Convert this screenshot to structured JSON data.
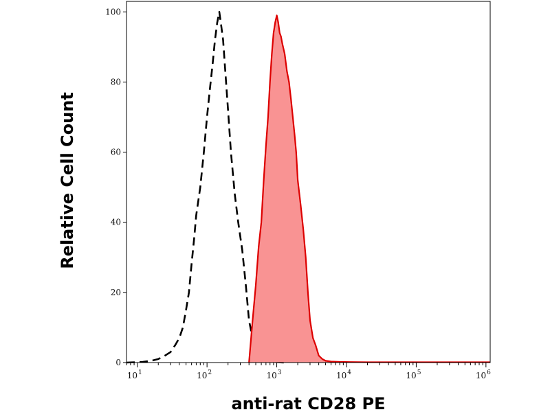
{
  "chart_data": {
    "type": "area",
    "xlabel": "anti-rat CD28 PE",
    "ylabel": "Relative Cell Count",
    "x_scale": "log",
    "xlim": [
      7,
      1150000
    ],
    "ylim": [
      0,
      103
    ],
    "x_ticks": [
      {
        "value": 10,
        "base": "10",
        "exp": "1"
      },
      {
        "value": 100,
        "base": "10",
        "exp": "2"
      },
      {
        "value": 1000,
        "base": "10",
        "exp": "3"
      },
      {
        "value": 10000,
        "base": "10",
        "exp": "4"
      },
      {
        "value": 100000,
        "base": "10",
        "exp": "5"
      },
      {
        "value": 1000000,
        "base": "10",
        "exp": "6"
      }
    ],
    "y_ticks": [
      {
        "value": 0,
        "label": "0"
      },
      {
        "value": 20,
        "label": "20"
      },
      {
        "value": 40,
        "label": "40"
      },
      {
        "value": 60,
        "label": "60"
      },
      {
        "value": 80,
        "label": "80"
      },
      {
        "value": 100,
        "label": "100"
      }
    ],
    "grid": false,
    "series": [
      {
        "style": "dashed",
        "color": "#000000",
        "fill": "none",
        "x": [
          7,
          12,
          16,
          20,
          25,
          30,
          35,
          40,
          45,
          50,
          55,
          60,
          65,
          70,
          80,
          90,
          100,
          110,
          120,
          130,
          140,
          150,
          160,
          170,
          180,
          200,
          220,
          250,
          280,
          320,
          360,
          400,
          450,
          500,
          560,
          630,
          700,
          800,
          1000,
          1300
        ],
        "values": [
          0,
          0.2,
          0.5,
          1,
          2,
          3,
          5,
          7,
          10,
          15,
          20,
          28,
          35,
          42,
          50,
          60,
          70,
          78,
          85,
          92,
          97,
          100,
          96,
          92,
          85,
          72,
          60,
          48,
          40,
          32,
          22,
          12,
          7,
          4,
          2,
          1,
          0.6,
          0.3,
          0.1,
          0
        ]
      },
      {
        "style": "solid",
        "color": "#dd0000",
        "fill": "#f99393",
        "x": [
          400,
          450,
          500,
          550,
          600,
          650,
          700,
          750,
          800,
          850,
          900,
          950,
          1000,
          1050,
          1100,
          1150,
          1200,
          1300,
          1400,
          1500,
          1600,
          1700,
          1800,
          1900,
          2000,
          2200,
          2400,
          2600,
          2800,
          3000,
          3300,
          3600,
          4000,
          4500,
          5000,
          6000,
          8000,
          20000,
          100000,
          1150000
        ],
        "values": [
          0,
          12,
          22,
          33,
          40,
          52,
          62,
          70,
          80,
          88,
          94,
          97,
          99,
          97,
          94,
          93,
          91,
          88,
          83,
          80,
          75,
          70,
          65,
          60,
          52,
          45,
          38,
          30,
          20,
          12,
          7,
          5,
          2,
          1,
          0.5,
          0.3,
          0.2,
          0.1,
          0.1,
          0.1
        ]
      }
    ]
  }
}
